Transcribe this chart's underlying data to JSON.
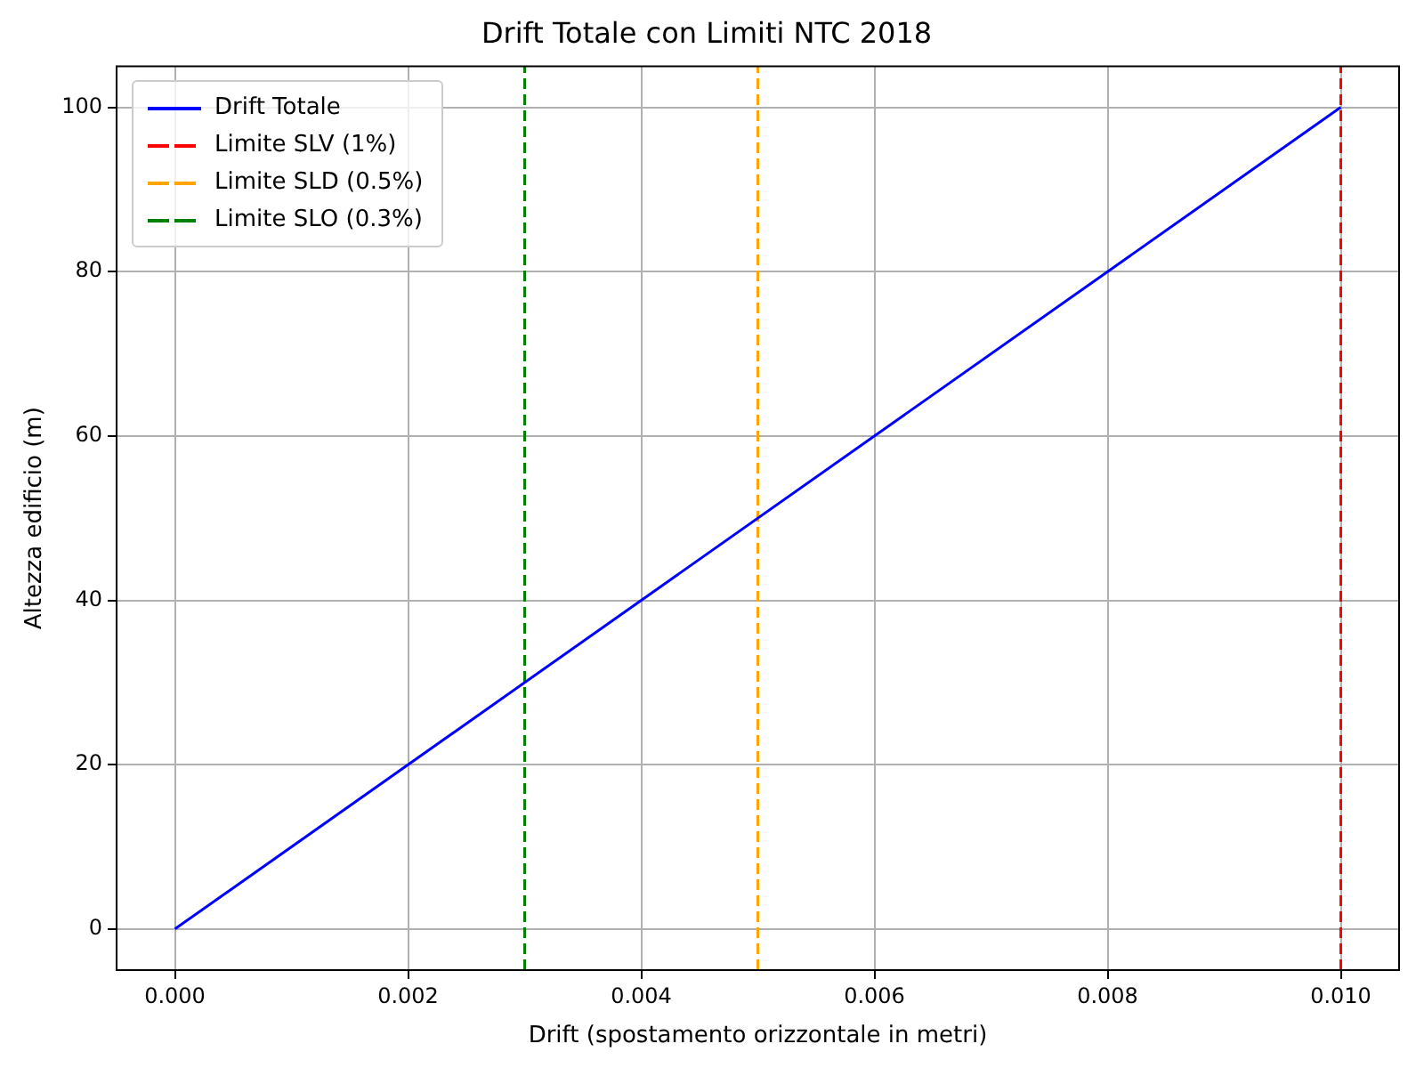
{
  "chart_data": {
    "type": "line",
    "title": "Drift Totale con Limiti NTC 2018",
    "xlabel": "Drift (spostamento orizzontale in metri)",
    "ylabel": "Altezza edificio (m)",
    "x": [
      0,
      0.01
    ],
    "series": [
      {
        "name": "Drift Totale",
        "color": "#0000ff",
        "values": [
          0,
          100
        ]
      },
      {
        "name": "Limite SLV (1%)",
        "color": "#ff0000",
        "line_style": "dashed",
        "x": [
          0.01,
          0.01
        ],
        "values": [
          -5,
          105
        ]
      },
      {
        "name": "Limite SLD (0.5%)",
        "color": "#ffa500",
        "line_style": "dashed",
        "x": [
          0.005,
          0.005
        ],
        "values": [
          -5,
          105
        ]
      },
      {
        "name": "Limite SLO (0.3%)",
        "color": "#008000",
        "line_style": "dashed",
        "x": [
          0.003,
          0.003
        ],
        "values": [
          -5,
          105
        ]
      }
    ],
    "xlim": [
      -0.0005,
      0.0105
    ],
    "ylim": [
      -5,
      105
    ],
    "xticks": [
      {
        "value": 0,
        "label": "0.000"
      },
      {
        "value": 0.002,
        "label": "0.002"
      },
      {
        "value": 0.004,
        "label": "0.004"
      },
      {
        "value": 0.006,
        "label": "0.006"
      },
      {
        "value": 0.008,
        "label": "0.008"
      },
      {
        "value": 0.01,
        "label": "0.010"
      }
    ],
    "yticks": [
      0,
      20,
      40,
      60,
      80,
      100
    ],
    "grid": true,
    "legend": "top left",
    "line_style": "solid",
    "marker": "none"
  }
}
